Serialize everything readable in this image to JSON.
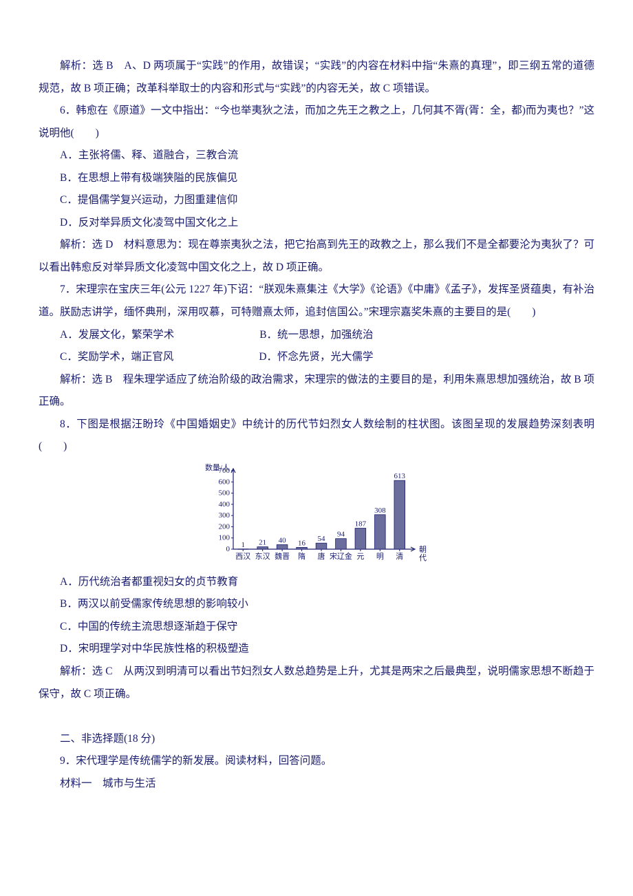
{
  "p1": "解析：选 B　A、D 两项属于“实践”的作用，故错误；“实践”的内容在材料中指“朱熹的真理”，即三纲五常的道德规范，故 B 项正确；改革科举取士的内容和形式与“实践”的内容无关，故 C 项错误。",
  "q6_stem": "6．韩愈在《原道》一文中指出：“今也举夷狄之法，而加之先王之教之上，几何其不胥(胥：全，都)而为夷也？”这说明他(　　)",
  "q6_a": "A．主张将儒、释、道融合，三教合流",
  "q6_b": "B．在思想上带有极端狭隘的民族偏见",
  "q6_c": "C．提倡儒学复兴运动，力图重建信仰",
  "q6_d": "D．反对举异质文化凌驾中国文化之上",
  "q6_ans": "解析：选 D　材料意思为：现在尊崇夷狄之法，把它抬高到先王的政教之上，那么我们不是全都要沦为夷狄了？可以看出韩愈反对举异质文化凌驾中国文化之上，故 D 项正确。",
  "q7_stem": "7．宋理宗在宝庆三年(公元 1227 年)下诏：“朕观朱熹集注《大学》《论语》《中庸》《孟子》，发挥圣贤蕴奥，有补治道。朕励志讲学，缅怀典刑，深用叹慕，可特赠熹太师，追封信国公。”宋理宗嘉奖朱熹的主要目的是(　　)",
  "q7_a": "A．发展文化，繁荣学术",
  "q7_b": "B．统一思想，加强统治",
  "q7_c": "C．奖励学术，端正官风",
  "q7_d": "D．怀念先贤，光大儒学",
  "q7_ans": "解析：选 B　程朱理学适应了统治阶级的政治需求，宋理宗的做法的主要目的是，利用朱熹思想加强统治，故 B 项正确。",
  "q8_stem": "8．下图是根据汪盼玲《中国婚姻史》中统计的历代节妇烈女人数绘制的柱状图。该图呈现的发展趋势深刻表明(　　)",
  "q8_a": "A．历代统治者都重视妇女的贞节教育",
  "q8_b": "B．两汉以前受儒家传统思想的影响较小",
  "q8_c": "C．中国的传统主流思想逐渐趋于保守",
  "q8_d": "D．宋明理学对中华民族性格的积极塑造",
  "q8_ans": "解析：选 C　从两汉到明清可以看出节妇烈女人数总趋势是上升，尤其是两宋之后最典型，说明儒家思想不断趋于保守，故 C 项正确。",
  "sec2": "二、非选择题(18 分)",
  "q9_stem": "9．宋代理学是传统儒学的新发展。阅读材料，回答问题。",
  "q9_mat": "材料一　城市与生活",
  "chart": {
    "type": "bar",
    "y_label": "数量/人",
    "x_label_a": "朝",
    "x_label_b": "代",
    "categories": [
      "西汉",
      "东汉",
      "魏晋",
      "隋",
      "唐",
      "宋辽金",
      "元",
      "明",
      "清"
    ],
    "values": [
      1,
      21,
      40,
      16,
      54,
      94,
      187,
      308,
      613
    ],
    "labels": [
      "1",
      "21",
      "40",
      "16",
      "54",
      "94",
      "187",
      "308",
      "613"
    ],
    "y_ticks": [
      0,
      100,
      200,
      300,
      400,
      500,
      600,
      700
    ],
    "y_tick_labels": [
      "0",
      "100",
      "200",
      "300",
      "400",
      "500",
      "600",
      "700"
    ],
    "ymax": 700,
    "bar_color": "#6b6d9c",
    "bar_stroke": "#1a1d6e",
    "axis_color": "#1a1d6e",
    "text_color": "#1a1d6e",
    "bg": "#ffffff",
    "label_fontsize": 11,
    "axis_fontsize": 11,
    "bar_width_ratio": 0.55
  }
}
